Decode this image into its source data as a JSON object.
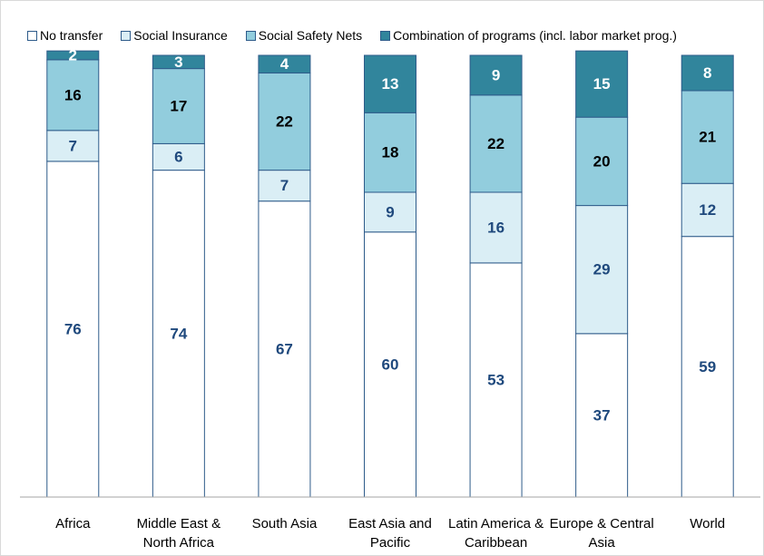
{
  "chart_data": {
    "type": "stacked_bar",
    "categories": [
      "Africa",
      "Middle East & North Africa",
      "South Asia",
      "East Asia and Pacific",
      "Latin America & Caribbean",
      "Europe & Central Asia",
      "World"
    ],
    "series": [
      {
        "name": "No transfer",
        "color": "#ffffff",
        "label_color": "#1f497d",
        "values": [
          76,
          74,
          67,
          60,
          53,
          37,
          59
        ]
      },
      {
        "name": "Social Insurance",
        "color": "#daeef5",
        "label_color": "#1f497d",
        "values": [
          7,
          6,
          7,
          9,
          16,
          29,
          12
        ]
      },
      {
        "name": "Social Safety Nets",
        "color": "#92cddd",
        "label_color": "#000000",
        "values": [
          16,
          17,
          22,
          18,
          22,
          20,
          21
        ]
      },
      {
        "name": "Combination of programs (incl. labor market prog.)",
        "color": "#31859c",
        "label_color": "#ffffff",
        "values": [
          2,
          3,
          4,
          13,
          9,
          15,
          8
        ]
      }
    ],
    "ylim": [
      0,
      100
    ],
    "legend": "top"
  }
}
